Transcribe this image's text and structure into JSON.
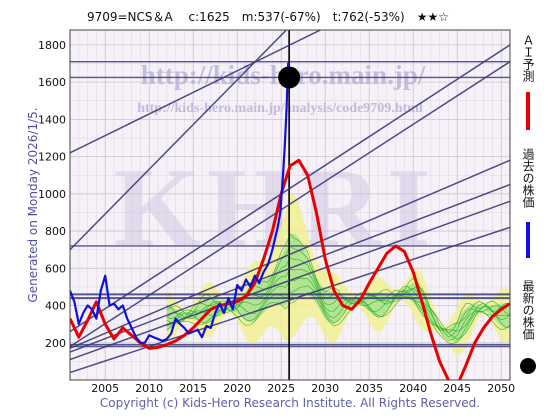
{
  "header": {
    "text": "9709=NCS＆A　 c:1625　m:537(-67%)　t:762(-53%)　★★☆"
  },
  "watermark": {
    "url": "http://kids-hero.main.jp/",
    "suburl": "http://kids-hero.main.jp/analysis/code9709.html",
    "logo": "KHRI"
  },
  "side_note": "Generated on Monday 2026/1/5.",
  "copyright": "Copyright (c) Kids-Hero Research Institute. All Rights Reserved.",
  "legend": {
    "ai_forecast": "ＡＩ予測",
    "past_price": "過去の株価",
    "latest_price": "最新の株価"
  },
  "colors": {
    "ai_line": "#e80000",
    "price_line": "#1010dd",
    "channel_line": "#3a3a7a",
    "band_yellow": "#f4f08c",
    "band_green": "#9ee08e",
    "band_line": "#22aa22",
    "plot_bg": "#f6f0f8",
    "grid": "#c8c8c8",
    "latest_marker": "#000000"
  },
  "chart_data": {
    "type": "line",
    "xlim": [
      2001,
      2051
    ],
    "ylim": [
      0,
      1880
    ],
    "xticks": [
      2005,
      2010,
      2015,
      2020,
      2025,
      2030,
      2035,
      2040,
      2045,
      2050
    ],
    "yticks": [
      200,
      400,
      600,
      800,
      1000,
      1200,
      1400,
      1600,
      1800
    ],
    "grid": true,
    "horizontal_levels": [
      1710,
      1625,
      720,
      460,
      440,
      190,
      180
    ],
    "latest": {
      "x": 2025.9,
      "y": 1625
    },
    "channels": [
      [
        [
          2001,
          1220
        ],
        [
          2051,
          2380
        ]
      ],
      [
        [
          2001,
          700
        ],
        [
          2051,
          3100
        ]
      ],
      [
        [
          2001,
          260
        ],
        [
          2051,
          1800
        ]
      ],
      [
        [
          2001,
          180
        ],
        [
          2051,
          1710
        ]
      ],
      [
        [
          2001,
          170
        ],
        [
          2051,
          1180
        ]
      ],
      [
        [
          2001,
          150
        ],
        [
          2051,
          1050
        ]
      ],
      [
        [
          2001,
          110
        ],
        [
          2051,
          960
        ]
      ],
      [
        [
          2001,
          40
        ],
        [
          2051,
          820
        ]
      ]
    ],
    "series": [
      {
        "name": "過去の株価",
        "x": [
          2001.0,
          2001.5,
          2002.0,
          2002.5,
          2003.0,
          2003.5,
          2004.0,
          2004.5,
          2005.0,
          2005.5,
          2006.0,
          2006.5,
          2007.0,
          2007.5,
          2008.0,
          2008.5,
          2009.0,
          2009.5,
          2010.0,
          2010.5,
          2011.0,
          2011.5,
          2012.0,
          2012.5,
          2013.0,
          2013.5,
          2014.0,
          2014.5,
          2015.0,
          2015.5,
          2016.0,
          2016.5,
          2017.0,
          2017.5,
          2018.0,
          2018.5,
          2019.0,
          2019.5,
          2020.0,
          2020.5,
          2021.0,
          2021.5,
          2022.0,
          2022.5,
          2023.0,
          2023.5,
          2024.0,
          2024.3,
          2024.6,
          2024.9,
          2025.2,
          2025.4,
          2025.6,
          2025.8,
          2025.9
        ],
        "values": [
          480,
          420,
          300,
          360,
          400,
          380,
          330,
          480,
          560,
          400,
          410,
          380,
          400,
          330,
          280,
          230,
          200,
          200,
          240,
          230,
          220,
          210,
          220,
          250,
          330,
          300,
          280,
          250,
          260,
          270,
          230,
          290,
          280,
          360,
          410,
          360,
          440,
          380,
          510,
          480,
          540,
          500,
          560,
          520,
          580,
          620,
          700,
          760,
          820,
          900,
          1100,
          1250,
          1450,
          1700,
          1625
        ]
      },
      {
        "name": "ＡＩ予測",
        "x": [
          2001,
          2002,
          2003,
          2004,
          2005,
          2006,
          2007,
          2008,
          2009,
          2010,
          2011,
          2012,
          2013,
          2014,
          2015,
          2016,
          2017,
          2018,
          2019,
          2020,
          2021,
          2022,
          2023,
          2024,
          2025,
          2026,
          2027,
          2028,
          2029,
          2030,
          2031,
          2032,
          2033,
          2034,
          2035,
          2036,
          2037,
          2038,
          2039,
          2040,
          2041,
          2042,
          2043,
          2044,
          2045,
          2046,
          2047,
          2048,
          2049,
          2050,
          2051
        ],
        "values": [
          330,
          230,
          320,
          420,
          300,
          220,
          280,
          240,
          200,
          170,
          175,
          190,
          210,
          240,
          280,
          330,
          380,
          400,
          410,
          420,
          450,
          520,
          650,
          800,
          1000,
          1150,
          1180,
          1100,
          900,
          650,
          480,
          400,
          380,
          430,
          520,
          600,
          680,
          720,
          690,
          580,
          420,
          250,
          100,
          0,
          -30,
          80,
          200,
          280,
          340,
          380,
          410
        ]
      }
    ]
  }
}
